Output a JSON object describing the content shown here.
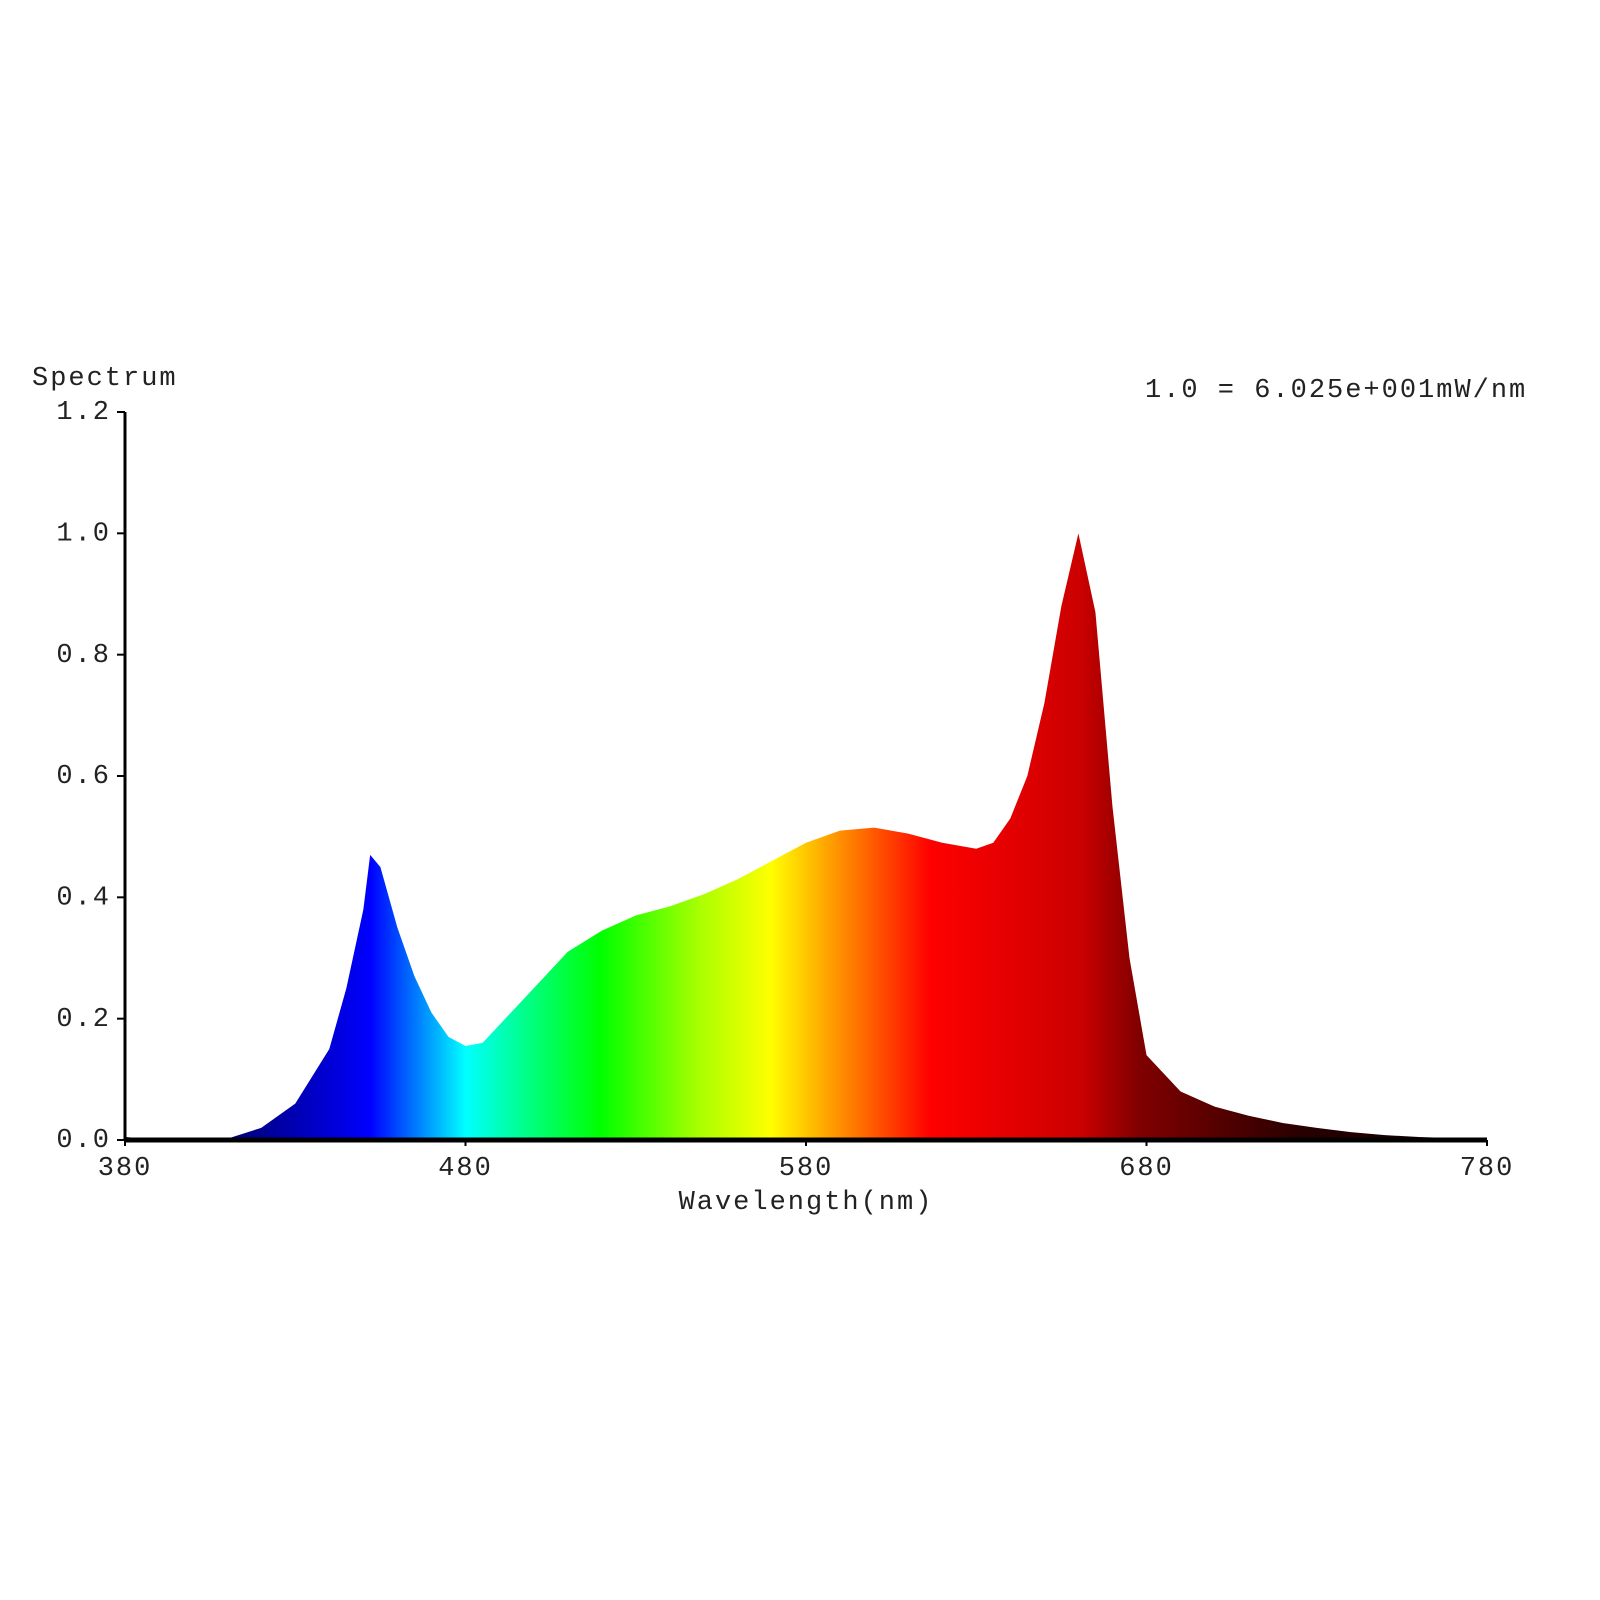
{
  "chart_data": {
    "type": "area",
    "title": "Spectrum",
    "annotation": "1.0 = 6.025e+001mW/nm",
    "x_label": "Wavelength(nm)",
    "x": [
      380,
      390,
      400,
      410,
      420,
      430,
      440,
      445,
      450,
      452,
      455,
      460,
      465,
      470,
      475,
      480,
      485,
      490,
      500,
      510,
      520,
      530,
      540,
      550,
      560,
      570,
      580,
      590,
      600,
      610,
      620,
      630,
      635,
      640,
      645,
      650,
      655,
      660,
      665,
      670,
      675,
      680,
      690,
      700,
      710,
      720,
      730,
      740,
      750,
      760,
      770,
      780
    ],
    "values": [
      0.005,
      0.0,
      0.0,
      0.002,
      0.02,
      0.06,
      0.15,
      0.25,
      0.38,
      0.47,
      0.45,
      0.35,
      0.27,
      0.21,
      0.17,
      0.155,
      0.16,
      0.19,
      0.25,
      0.31,
      0.345,
      0.37,
      0.385,
      0.405,
      0.43,
      0.46,
      0.49,
      0.51,
      0.515,
      0.505,
      0.49,
      0.48,
      0.49,
      0.53,
      0.6,
      0.72,
      0.88,
      1.0,
      0.87,
      0.55,
      0.3,
      0.14,
      0.08,
      0.055,
      0.04,
      0.028,
      0.02,
      0.013,
      0.008,
      0.005,
      0.003,
      0.002
    ],
    "xlim": [
      380,
      780
    ],
    "xticks": [
      380,
      480,
      580,
      680,
      780
    ],
    "ylim": [
      0,
      1.2
    ],
    "yticks": [
      {
        "value": 0,
        "label": "0.0"
      },
      0.2,
      0.4,
      0.6,
      0.8,
      {
        "value": 1,
        "label": "1.0"
      },
      1.2
    ],
    "grid": false
  }
}
